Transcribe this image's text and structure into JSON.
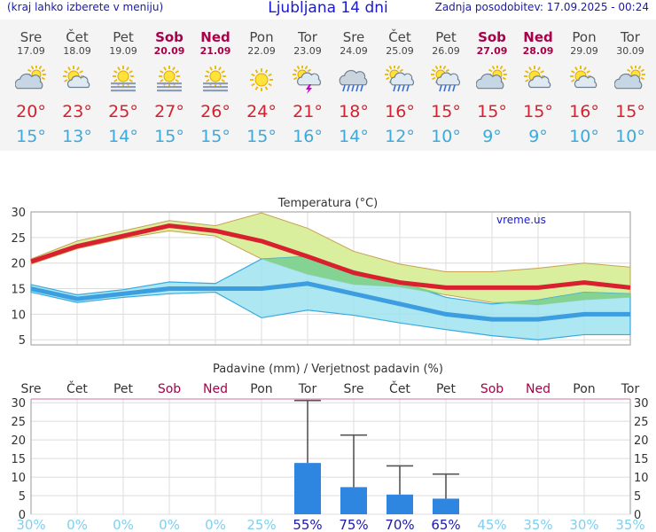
{
  "header": {
    "menu_hint": "(kraj lahko izberete v meniju)",
    "title": "Ljubljana 14 dni",
    "updated": "Zadnja posodobitev: 17.09.2025 - 00:24"
  },
  "forecast": [
    {
      "day": "Sre",
      "date": "17.09",
      "weekend": false,
      "icon": "partly-cloudy-icon",
      "max": "20°",
      "min": "15°"
    },
    {
      "day": "Čet",
      "date": "18.09",
      "weekend": false,
      "icon": "sun-cloud-icon",
      "max": "23°",
      "min": "13°"
    },
    {
      "day": "Pet",
      "date": "19.09",
      "weekend": false,
      "icon": "sun-fog-icon",
      "max": "25°",
      "min": "14°"
    },
    {
      "day": "Sob",
      "date": "20.09",
      "weekend": true,
      "icon": "sun-fog-icon",
      "max": "27°",
      "min": "15°"
    },
    {
      "day": "Ned",
      "date": "21.09",
      "weekend": true,
      "icon": "sun-fog-icon",
      "max": "26°",
      "min": "15°"
    },
    {
      "day": "Pon",
      "date": "22.09",
      "weekend": false,
      "icon": "sun-icon",
      "max": "24°",
      "min": "15°"
    },
    {
      "day": "Tor",
      "date": "23.09",
      "weekend": false,
      "icon": "thunderstorm-icon",
      "max": "21°",
      "min": "16°"
    },
    {
      "day": "Sre",
      "date": "24.09",
      "weekend": false,
      "icon": "rain-icon",
      "max": "18°",
      "min": "14°"
    },
    {
      "day": "Čet",
      "date": "25.09",
      "weekend": false,
      "icon": "sun-rain-icon",
      "max": "16°",
      "min": "12°"
    },
    {
      "day": "Pet",
      "date": "26.09",
      "weekend": false,
      "icon": "sun-rain-icon",
      "max": "15°",
      "min": "10°"
    },
    {
      "day": "Sob",
      "date": "27.09",
      "weekend": true,
      "icon": "partly-cloudy-icon",
      "max": "15°",
      "min": "9°"
    },
    {
      "day": "Ned",
      "date": "28.09",
      "weekend": true,
      "icon": "sun-cloud-icon",
      "max": "15°",
      "min": "9°"
    },
    {
      "day": "Pon",
      "date": "29.09",
      "weekend": false,
      "icon": "sun-cloud-icon",
      "max": "16°",
      "min": "10°"
    },
    {
      "day": "Tor",
      "date": "30.09",
      "weekend": false,
      "icon": "partly-cloudy-icon",
      "max": "15°",
      "min": "10°"
    }
  ],
  "colors": {
    "max_temp": "#d8202e",
    "min_temp": "#3aaadd",
    "weekend": "#a8004a",
    "precip_bar": "#2f86e0",
    "prob_high": "#1a1aa8",
    "prob_low": "#7fd0f0",
    "band_green": "#d9ef9e",
    "band_dark_green": "#7fd08a",
    "band_blue": "#9fe3ee"
  },
  "chart_data": [
    {
      "type": "line",
      "title": "Temperatura (°C)",
      "watermark": "vreme.us",
      "ylim": [
        4,
        30
      ],
      "yticks": [
        5,
        10,
        15,
        20,
        25,
        30
      ],
      "grid": true,
      "categories": [
        "17.09",
        "18.09",
        "19.09",
        "20.09",
        "21.09",
        "22.09",
        "23.09",
        "24.09",
        "25.09",
        "26.09",
        "27.09",
        "28.09",
        "29.09",
        "30.09"
      ],
      "series": [
        {
          "role": "max_mean",
          "values": [
            20.3,
            23.3,
            25.3,
            27.3,
            26.3,
            24.3,
            21.3,
            18.1,
            16.2,
            15.2,
            15.2,
            15.2,
            16.2,
            15.2
          ]
        },
        {
          "role": "max_band_upper",
          "values": [
            20.8,
            24.3,
            26.3,
            28.3,
            27.3,
            29.8,
            26.8,
            22.3,
            19.8,
            18.3,
            18.3,
            19.0,
            20.0,
            19.2
          ]
        },
        {
          "role": "max_band_lower",
          "values": [
            19.8,
            22.8,
            24.8,
            26.3,
            25.3,
            20.8,
            17.8,
            15.8,
            15.3,
            13.8,
            12.3,
            11.8,
            12.8,
            13.3
          ]
        },
        {
          "role": "min_mean",
          "values": [
            15.0,
            13.0,
            14.0,
            15.0,
            15.0,
            15.0,
            16.0,
            14.0,
            12.0,
            10.0,
            9.0,
            9.0,
            10.0,
            10.0
          ]
        },
        {
          "role": "min_band_upper",
          "values": [
            15.8,
            13.8,
            14.8,
            16.3,
            16.0,
            20.8,
            21.3,
            18.5,
            16.3,
            13.3,
            12.0,
            12.8,
            14.3,
            14.0
          ]
        },
        {
          "role": "min_band_lower",
          "values": [
            14.3,
            12.3,
            13.3,
            14.0,
            14.3,
            9.3,
            10.8,
            9.8,
            8.3,
            7.0,
            5.8,
            5.0,
            6.0,
            6.0
          ]
        }
      ]
    },
    {
      "type": "bar",
      "title": "Padavine (mm) / Verjetnost padavin (%)",
      "ylim": [
        0,
        31
      ],
      "yticks": [
        0,
        5,
        10,
        15,
        20,
        25,
        30
      ],
      "grid": true,
      "categories": [
        "Sre",
        "Čet",
        "Pet",
        "Sob",
        "Ned",
        "Pon",
        "Tor",
        "Sre",
        "Čet",
        "Pet",
        "Sob",
        "Ned",
        "Pon",
        "Tor"
      ],
      "weekend_flags": [
        false,
        false,
        false,
        true,
        true,
        false,
        false,
        false,
        false,
        false,
        true,
        true,
        false,
        false
      ],
      "precip_mm": [
        0,
        0,
        0,
        0,
        0,
        0,
        13.8,
        7.3,
        5.3,
        4.2,
        0,
        0,
        0,
        0
      ],
      "precip_max_mm": [
        0,
        0,
        0,
        0,
        0,
        0,
        30.6,
        21.3,
        13.0,
        10.8,
        0,
        0,
        0,
        0
      ],
      "probability": [
        "30%",
        "0%",
        "0%",
        "0%",
        "0%",
        "25%",
        "55%",
        "75%",
        "70%",
        "65%",
        "45%",
        "35%",
        "30%",
        "35%"
      ],
      "probability_values": [
        30,
        0,
        0,
        0,
        0,
        25,
        55,
        75,
        70,
        65,
        45,
        35,
        30,
        35
      ]
    }
  ]
}
